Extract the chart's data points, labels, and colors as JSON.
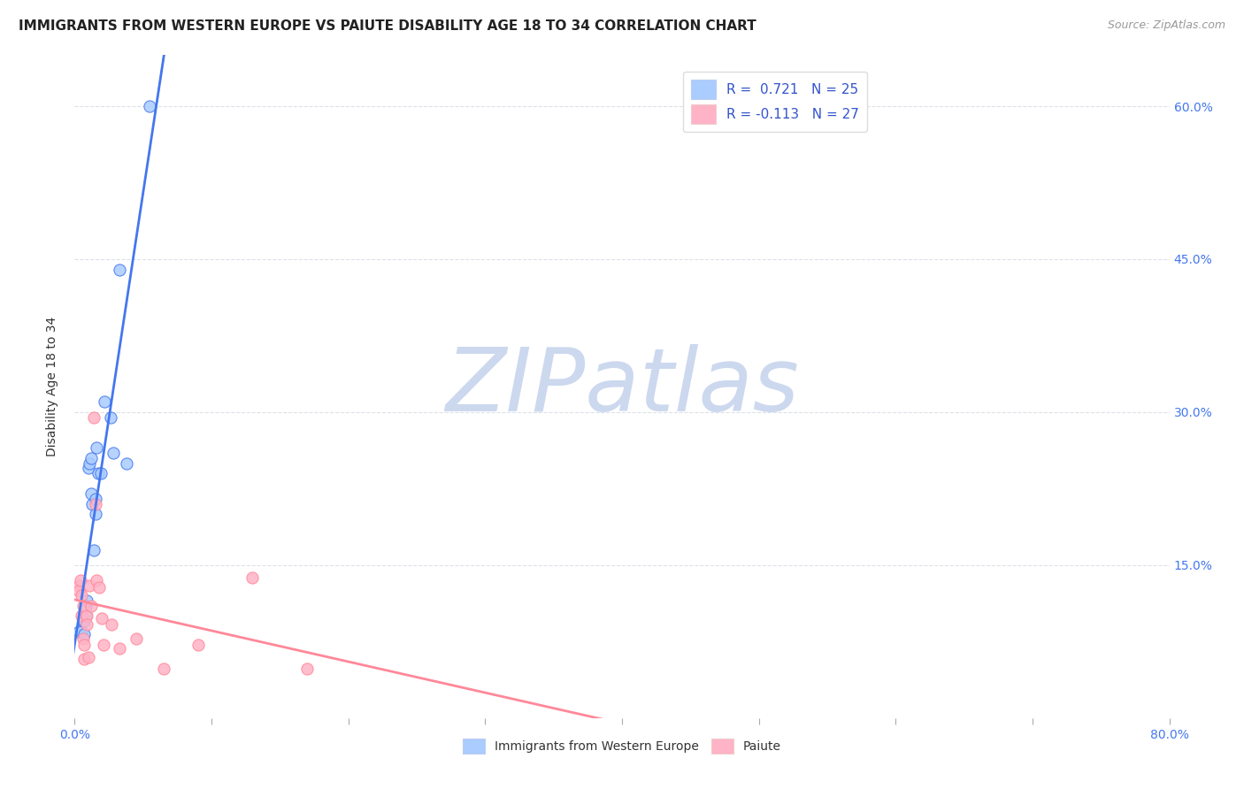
{
  "title": "IMMIGRANTS FROM WESTERN EUROPE VS PAIUTE DISABILITY AGE 18 TO 34 CORRELATION CHART",
  "source": "Source: ZipAtlas.com",
  "ylabel": "Disability Age 18 to 34",
  "ylabel_right_ticks": [
    "60.0%",
    "45.0%",
    "30.0%",
    "15.0%"
  ],
  "ylabel_right_vals": [
    0.6,
    0.45,
    0.3,
    0.15
  ],
  "legend_r1": "R =  0.721   N = 25",
  "legend_r2": "R = -0.113   N = 27",
  "watermark": "ZIPatlas",
  "blue_scatter": [
    [
      0.003,
      0.085
    ],
    [
      0.005,
      0.085
    ],
    [
      0.006,
      0.095
    ],
    [
      0.007,
      0.095
    ],
    [
      0.007,
      0.082
    ],
    [
      0.008,
      0.1
    ],
    [
      0.008,
      0.11
    ],
    [
      0.009,
      0.115
    ],
    [
      0.01,
      0.245
    ],
    [
      0.011,
      0.25
    ],
    [
      0.012,
      0.255
    ],
    [
      0.012,
      0.22
    ],
    [
      0.013,
      0.21
    ],
    [
      0.014,
      0.165
    ],
    [
      0.015,
      0.2
    ],
    [
      0.015,
      0.215
    ],
    [
      0.016,
      0.265
    ],
    [
      0.017,
      0.24
    ],
    [
      0.019,
      0.24
    ],
    [
      0.022,
      0.31
    ],
    [
      0.026,
      0.295
    ],
    [
      0.028,
      0.26
    ],
    [
      0.033,
      0.44
    ],
    [
      0.038,
      0.25
    ],
    [
      0.055,
      0.6
    ]
  ],
  "pink_scatter": [
    [
      0.003,
      0.13
    ],
    [
      0.003,
      0.125
    ],
    [
      0.004,
      0.135
    ],
    [
      0.005,
      0.12
    ],
    [
      0.005,
      0.1
    ],
    [
      0.006,
      0.11
    ],
    [
      0.006,
      0.078
    ],
    [
      0.007,
      0.072
    ],
    [
      0.007,
      0.058
    ],
    [
      0.009,
      0.1
    ],
    [
      0.009,
      0.092
    ],
    [
      0.01,
      0.06
    ],
    [
      0.011,
      0.13
    ],
    [
      0.012,
      0.11
    ],
    [
      0.014,
      0.295
    ],
    [
      0.015,
      0.21
    ],
    [
      0.016,
      0.135
    ],
    [
      0.018,
      0.128
    ],
    [
      0.02,
      0.098
    ],
    [
      0.021,
      0.072
    ],
    [
      0.027,
      0.092
    ],
    [
      0.033,
      0.068
    ],
    [
      0.045,
      0.078
    ],
    [
      0.065,
      0.048
    ],
    [
      0.09,
      0.072
    ],
    [
      0.13,
      0.138
    ],
    [
      0.17,
      0.048
    ]
  ],
  "blue_color": "#aaccff",
  "pink_color": "#ffb3c6",
  "blue_line_color": "#4477ee",
  "pink_line_color": "#ff8899",
  "xlim": [
    0.0,
    0.8
  ],
  "ylim": [
    0.0,
    0.65
  ],
  "x_ticks_major": [
    0.0,
    0.1,
    0.2,
    0.3,
    0.4,
    0.5,
    0.6,
    0.7,
    0.8
  ],
  "grid_color": "#dde0ea",
  "background_color": "#ffffff",
  "title_fontsize": 11,
  "source_fontsize": 9,
  "watermark_color": "#ccd8ee",
  "watermark_fontsize": 72
}
